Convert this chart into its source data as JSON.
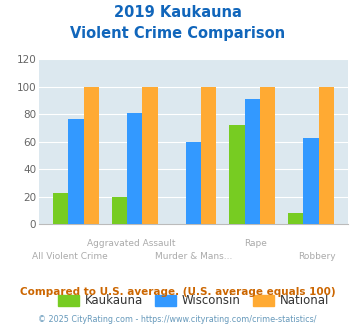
{
  "title_line1": "2019 Kaukauna",
  "title_line2": "Violent Crime Comparison",
  "categories": [
    "All Violent Crime",
    "Aggravated Assault",
    "Murder & Mans...",
    "Rape",
    "Robbery"
  ],
  "kaukauna": [
    23,
    20,
    0,
    72,
    8
  ],
  "wisconsin": [
    77,
    81,
    60,
    91,
    63
  ],
  "national": [
    100,
    100,
    100,
    100,
    100
  ],
  "color_kaukauna": "#77cc22",
  "color_wisconsin": "#3399ff",
  "color_national": "#ffaa33",
  "ylim": [
    0,
    120
  ],
  "yticks": [
    0,
    20,
    40,
    60,
    80,
    100,
    120
  ],
  "legend_labels": [
    "Kaukauna",
    "Wisconsin",
    "National"
  ],
  "footnote1": "Compared to U.S. average. (U.S. average equals 100)",
  "footnote2": "© 2025 CityRating.com - https://www.cityrating.com/crime-statistics/",
  "bg_color": "#dce8ef",
  "title_color": "#1166bb",
  "footnote1_color": "#cc6600",
  "footnote2_color": "#6699bb",
  "xlabel_top_color": "#aaaaaa",
  "xlabel_bot_color": "#aaaaaa",
  "tick_color": "#666666"
}
